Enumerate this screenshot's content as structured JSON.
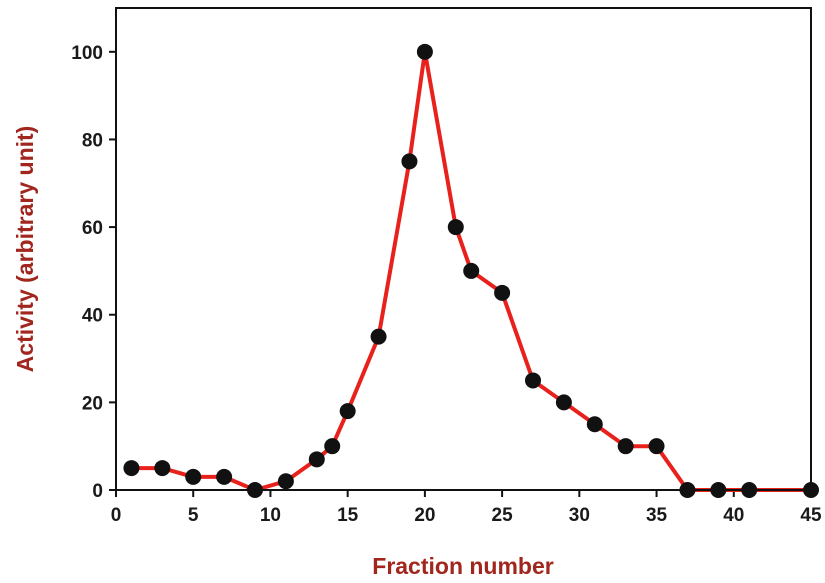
{
  "chart_data": {
    "type": "line",
    "xlabel": "Fraction number",
    "ylabel": "Activity (arbitrary unit)",
    "xlim": [
      0,
      45
    ],
    "ylim": [
      0,
      110
    ],
    "xticks": [
      0,
      5,
      10,
      15,
      20,
      25,
      30,
      35,
      40,
      45
    ],
    "yticks": [
      0,
      20,
      40,
      60,
      80,
      100
    ],
    "grid": false,
    "series": [
      {
        "x": [
          1,
          3,
          5,
          7,
          9,
          11,
          13,
          14,
          15,
          17,
          19,
          20,
          22,
          23,
          25,
          27,
          29,
          31,
          33,
          35,
          37,
          39,
          41,
          45
        ],
        "y": [
          5,
          5,
          3,
          3,
          0,
          2,
          7,
          10,
          18,
          35,
          75,
          100,
          60,
          50,
          45,
          25,
          20,
          15,
          10,
          10,
          0,
          0,
          0,
          0
        ]
      }
    ],
    "colors": {
      "line": "#e8211d",
      "marker": "#111111",
      "axis_title": "#a0261e",
      "tick_text": "#1a1a1a",
      "frame": "#111111"
    }
  }
}
